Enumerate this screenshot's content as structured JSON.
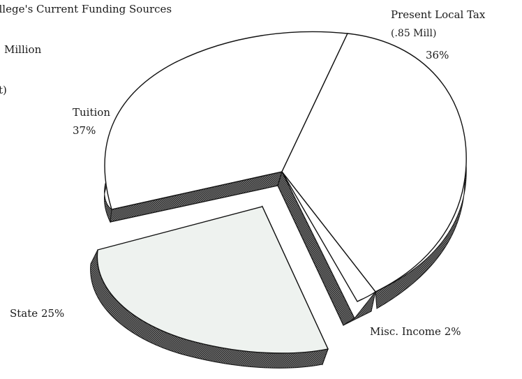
{
  "chart_data": {
    "type": "pie",
    "title": "College's Current Funding Sources",
    "subtitle_lines": [
      "Million",
      "t)"
    ],
    "slices": [
      {
        "label": "Present Local Tax",
        "note": "(.85 Mill)",
        "percent_label": "36%",
        "value": 36
      },
      {
        "label": "Misc. Income",
        "percent_label": "2%",
        "value": 2
      },
      {
        "label": "State",
        "percent_label": "25%",
        "value": 25
      },
      {
        "label": "Tuition",
        "percent_label": "37%",
        "value": 37
      }
    ],
    "colors": {
      "outline": "#111111",
      "face": "#ffffff",
      "state_face": "#eef2ef",
      "shadow": "#6a6a6a"
    }
  }
}
